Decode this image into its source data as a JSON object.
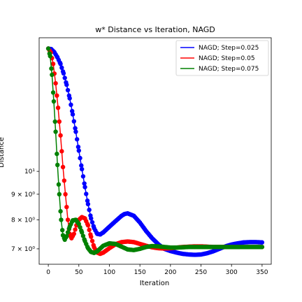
{
  "chart_data": {
    "type": "line",
    "title": "w* Distance vs Iteration, NAGD",
    "xlabel": "Iteration",
    "ylabel": "Distance",
    "xlim": [
      -15,
      365
    ],
    "ylim": [
      6.52,
      18.5
    ],
    "yscale": "log",
    "grid": false,
    "legend_position": "top-right",
    "x_ticks": [
      0,
      50,
      100,
      150,
      200,
      250,
      300,
      350
    ],
    "x_tick_labels": [
      "0",
      "50",
      "100",
      "150",
      "200",
      "250",
      "300",
      "350"
    ],
    "y_ticks": [
      7,
      8,
      9,
      10
    ],
    "y_tick_labels": [
      "7 × 10⁰",
      "8 × 10⁰",
      "9 × 10⁰",
      "10¹"
    ],
    "series": [
      {
        "name": "NAGD; Step=0.025",
        "color": "#0000ff",
        "marker": "circle",
        "points": [
          [
            0,
            17.6
          ],
          [
            5,
            17.55
          ],
          [
            10,
            17.3
          ],
          [
            15,
            16.9
          ],
          [
            20,
            16.4
          ],
          [
            25,
            15.7
          ],
          [
            30,
            14.9
          ],
          [
            35,
            14.0
          ],
          [
            40,
            13.0
          ],
          [
            45,
            12.0
          ],
          [
            50,
            11.0
          ],
          [
            55,
            10.1
          ],
          [
            60,
            9.3
          ],
          [
            65,
            8.6
          ],
          [
            70,
            8.05
          ],
          [
            75,
            7.7
          ],
          [
            80,
            7.5
          ],
          [
            85,
            7.48
          ],
          [
            90,
            7.55
          ],
          [
            100,
            7.75
          ],
          [
            110,
            7.95
          ],
          [
            120,
            8.15
          ],
          [
            125,
            8.22
          ],
          [
            130,
            8.24
          ],
          [
            140,
            8.15
          ],
          [
            150,
            7.9
          ],
          [
            160,
            7.6
          ],
          [
            170,
            7.35
          ],
          [
            180,
            7.15
          ],
          [
            190,
            7.0
          ],
          [
            200,
            6.93
          ],
          [
            210,
            6.88
          ],
          [
            220,
            6.84
          ],
          [
            230,
            6.82
          ],
          [
            240,
            6.81
          ],
          [
            250,
            6.82
          ],
          [
            260,
            6.86
          ],
          [
            270,
            6.92
          ],
          [
            280,
            7.0
          ],
          [
            290,
            7.08
          ],
          [
            300,
            7.14
          ],
          [
            310,
            7.18
          ],
          [
            320,
            7.21
          ],
          [
            330,
            7.22
          ],
          [
            340,
            7.22
          ],
          [
            350,
            7.21
          ]
        ]
      },
      {
        "name": "NAGD; Step=0.05",
        "color": "#ff0000",
        "marker": "circle",
        "points": [
          [
            0,
            17.6
          ],
          [
            4,
            17.3
          ],
          [
            8,
            16.4
          ],
          [
            12,
            15.0
          ],
          [
            16,
            13.4
          ],
          [
            20,
            11.8
          ],
          [
            24,
            10.2
          ],
          [
            28,
            9.0
          ],
          [
            32,
            8.0
          ],
          [
            35,
            7.5
          ],
          [
            38,
            7.35
          ],
          [
            42,
            7.5
          ],
          [
            46,
            7.8
          ],
          [
            50,
            8.0
          ],
          [
            55,
            8.1
          ],
          [
            60,
            8.05
          ],
          [
            65,
            7.8
          ],
          [
            70,
            7.4
          ],
          [
            75,
            7.05
          ],
          [
            80,
            6.88
          ],
          [
            85,
            6.84
          ],
          [
            90,
            6.88
          ],
          [
            100,
            7.02
          ],
          [
            110,
            7.15
          ],
          [
            120,
            7.22
          ],
          [
            130,
            7.24
          ],
          [
            140,
            7.22
          ],
          [
            150,
            7.16
          ],
          [
            160,
            7.1
          ],
          [
            170,
            7.05
          ],
          [
            180,
            7.02
          ],
          [
            190,
            7.01
          ],
          [
            200,
            7.02
          ],
          [
            210,
            7.04
          ],
          [
            220,
            7.06
          ],
          [
            230,
            7.07
          ],
          [
            240,
            7.08
          ],
          [
            250,
            7.08
          ],
          [
            260,
            7.07
          ],
          [
            270,
            7.06
          ],
          [
            280,
            7.06
          ],
          [
            290,
            7.06
          ],
          [
            300,
            7.06
          ],
          [
            310,
            7.06
          ],
          [
            320,
            7.06
          ],
          [
            330,
            7.06
          ],
          [
            340,
            7.06
          ],
          [
            350,
            7.06
          ]
        ]
      },
      {
        "name": "NAGD; Step=0.075",
        "color": "#008000",
        "marker": "circle",
        "points": [
          [
            0,
            17.6
          ],
          [
            3,
            17.0
          ],
          [
            6,
            15.6
          ],
          [
            9,
            13.8
          ],
          [
            12,
            12.0
          ],
          [
            15,
            10.3
          ],
          [
            18,
            9.0
          ],
          [
            21,
            8.0
          ],
          [
            24,
            7.45
          ],
          [
            27,
            7.3
          ],
          [
            30,
            7.42
          ],
          [
            35,
            7.75
          ],
          [
            40,
            7.98
          ],
          [
            45,
            8.0
          ],
          [
            50,
            7.85
          ],
          [
            55,
            7.55
          ],
          [
            60,
            7.25
          ],
          [
            65,
            7.02
          ],
          [
            70,
            6.9
          ],
          [
            75,
            6.87
          ],
          [
            80,
            6.92
          ],
          [
            90,
            7.1
          ],
          [
            100,
            7.18
          ],
          [
            110,
            7.16
          ],
          [
            120,
            7.07
          ],
          [
            130,
            6.98
          ],
          [
            140,
            6.96
          ],
          [
            150,
            7.0
          ],
          [
            160,
            7.06
          ],
          [
            170,
            7.09
          ],
          [
            180,
            7.08
          ],
          [
            190,
            7.06
          ],
          [
            200,
            7.04
          ],
          [
            210,
            7.04
          ],
          [
            220,
            7.05
          ],
          [
            230,
            7.06
          ],
          [
            240,
            7.06
          ],
          [
            250,
            7.06
          ],
          [
            260,
            7.06
          ],
          [
            270,
            7.06
          ],
          [
            280,
            7.06
          ],
          [
            290,
            7.06
          ],
          [
            300,
            7.06
          ],
          [
            310,
            7.06
          ],
          [
            320,
            7.06
          ],
          [
            330,
            7.06
          ],
          [
            340,
            7.06
          ],
          [
            350,
            7.06
          ]
        ]
      }
    ]
  }
}
